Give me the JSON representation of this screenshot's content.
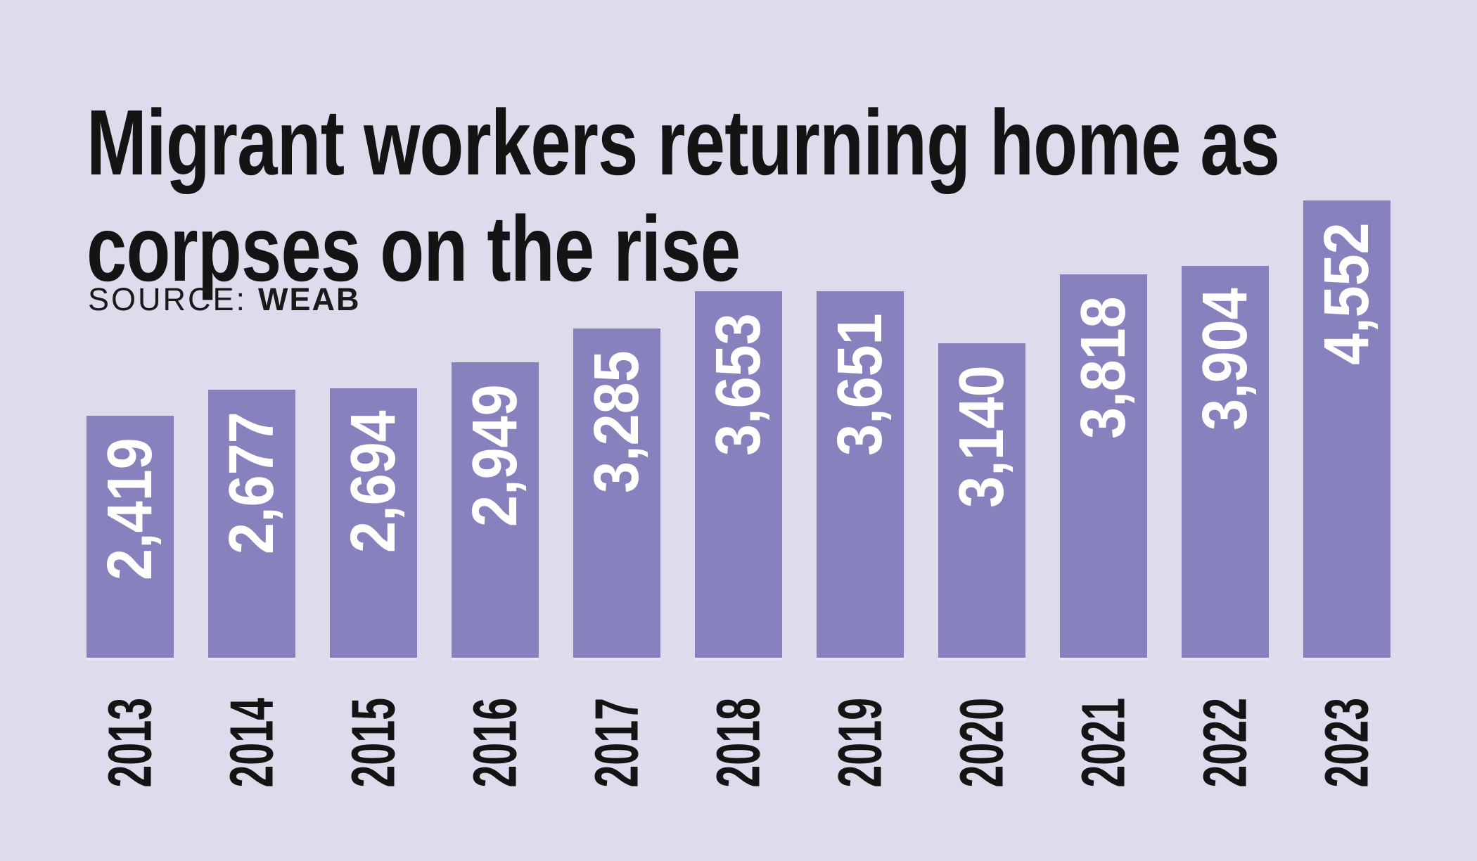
{
  "background_color": "#dedbec",
  "text_color": "#141414",
  "header": {
    "title": "Migrant workers returning home as corpses on the rise",
    "title_lines": [
      "Migrant workers returning home as",
      "corpses on the rise"
    ],
    "source_label": "SOURCE:",
    "source_value": "WEAB"
  },
  "chart_data": {
    "type": "bar",
    "title": "Migrant workers returning home as corpses on the rise",
    "source": "WEAB",
    "categories": [
      "2013",
      "2014",
      "2015",
      "2016",
      "2017",
      "2018",
      "2019",
      "2020",
      "2021",
      "2022",
      "2023"
    ],
    "values": [
      2419,
      2677,
      2694,
      2949,
      3285,
      3653,
      3651,
      3140,
      3818,
      3904,
      4552
    ],
    "value_labels": [
      "2,419",
      "2,677",
      "2,694",
      "2,949",
      "3,285",
      "3,653",
      "3,651",
      "3,140",
      "3,818",
      "3,904",
      "4,552"
    ],
    "ylim": [
      0,
      4552
    ],
    "xlabel": "",
    "ylabel": "",
    "grid": false,
    "legend": false,
    "orientation": "vertical",
    "bar_color": "#8781bd",
    "value_label_color": "#ffffff",
    "category_label_color": "#141414",
    "value_label_position": "inside-top-rotated-90ccw",
    "category_label_rotation": -90
  }
}
